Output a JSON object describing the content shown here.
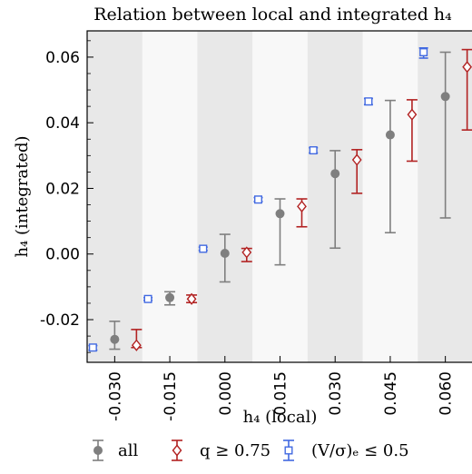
{
  "chart_data": {
    "type": "scatter",
    "title": "Relation between local and integrated h₄",
    "xlabel": "h₄ (local)",
    "ylabel": "h₄ (integrated)",
    "categories": [
      "-0.030",
      "-0.015",
      "0.000",
      "0.015",
      "0.030",
      "0.045",
      "0.060"
    ],
    "ylim": [
      -0.033,
      0.068
    ],
    "yticks": [
      "-0.02",
      "0.00",
      "0.02",
      "0.04",
      "0.06"
    ],
    "ytick_values": [
      -0.02,
      0.0,
      0.02,
      0.04,
      0.06
    ],
    "band_colors": [
      "#e8e8e8",
      "#f8f8f8"
    ],
    "legend_position": "bottom",
    "series": [
      {
        "name": "all",
        "marker": "circle",
        "color": "#7f7f7f",
        "values": [
          -0.026,
          -0.0133,
          0.0002,
          0.0123,
          0.0245,
          0.0363,
          0.048
        ],
        "lower": [
          -0.029,
          -0.0155,
          -0.0085,
          -0.0033,
          0.0018,
          0.0065,
          0.011
        ],
        "upper": [
          -0.0205,
          -0.0115,
          0.006,
          0.0168,
          0.0315,
          0.0468,
          0.0615
        ]
      },
      {
        "name": "q ≥ 0.75",
        "marker": "diamond",
        "color": "#b22222",
        "values": [
          -0.0278,
          -0.0137,
          0.0005,
          0.0145,
          0.0287,
          0.0425,
          0.057
        ],
        "lower": [
          -0.0285,
          -0.0148,
          -0.0023,
          0.0083,
          0.0185,
          0.0283,
          0.0378
        ],
        "upper": [
          -0.023,
          -0.0125,
          0.0017,
          0.0168,
          0.0318,
          0.047,
          0.0623
        ]
      },
      {
        "name": "(V/σ)ₑ ≤ 0.5",
        "marker": "square",
        "color": "#4169e1",
        "values": [
          -0.0285,
          -0.0137,
          0.0016,
          0.0166,
          0.0316,
          0.0465,
          0.0615
        ],
        "lower": [
          -0.0293,
          -0.0141,
          0.0011,
          0.016,
          0.0308,
          0.0455,
          0.0597
        ],
        "upper": [
          -0.0279,
          -0.0133,
          0.0021,
          0.0172,
          0.0324,
          0.0474,
          0.0628
        ]
      }
    ]
  }
}
